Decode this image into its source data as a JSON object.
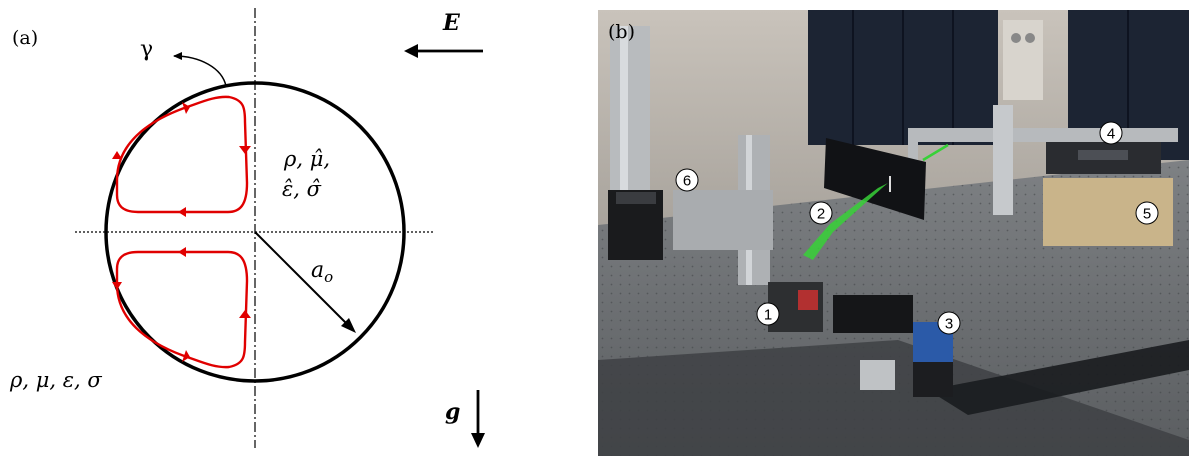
{
  "panel_a": {
    "label": "(a)",
    "gamma": "γ",
    "field_label": "E",
    "inner_props_line1": "ρ, μ̂,",
    "inner_props_line2": "ε̂, σ̂",
    "radius_label": "a",
    "radius_subscript": "o",
    "outer_props": "ρ, μ, ε, σ",
    "gravity_label": "g",
    "colors": {
      "stream": "#e00000",
      "outline": "#000000"
    }
  },
  "panel_b": {
    "label": "(b)",
    "callouts": [
      "1",
      "2",
      "3",
      "4",
      "5",
      "6"
    ]
  }
}
